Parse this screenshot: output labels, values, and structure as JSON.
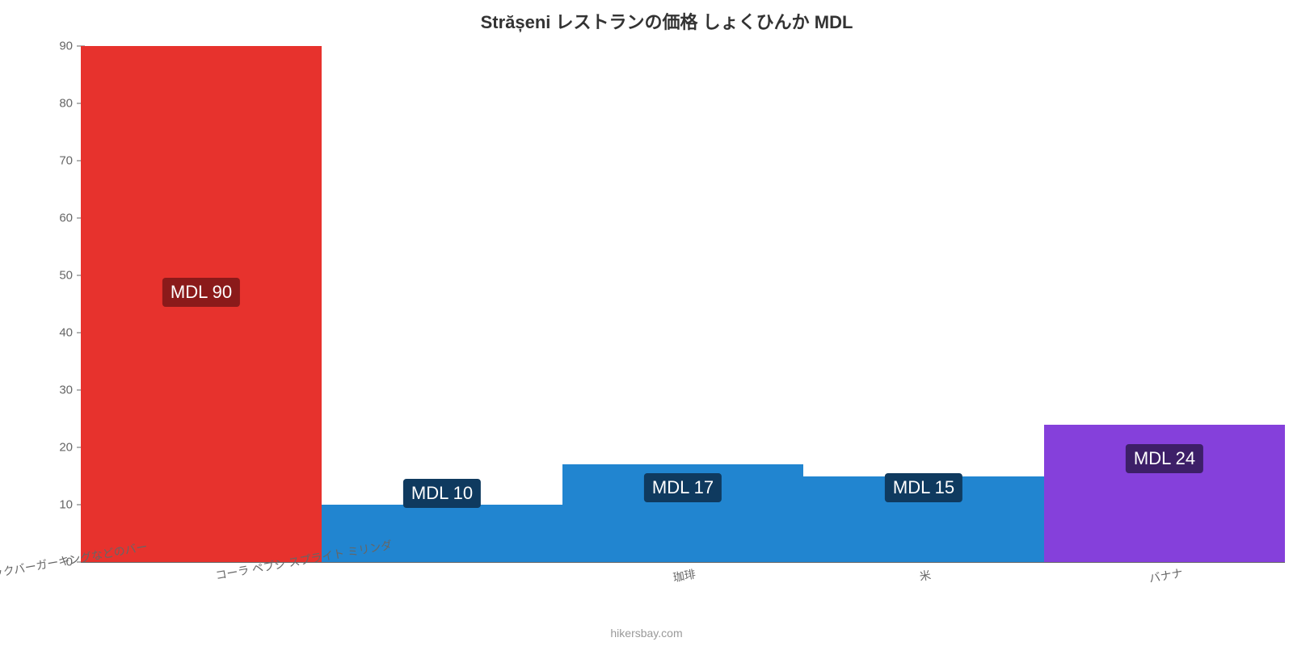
{
  "chart": {
    "type": "bar",
    "title": "Strășeni レストランの価格 しょくひんか MDL",
    "title_fontsize": 22,
    "title_color": "#333333",
    "background_color": "#ffffff",
    "attribution": "hikersbay.com",
    "attribution_fontsize": 14,
    "attribution_color": "#999999",
    "ylim": [
      0,
      90
    ],
    "ytick_step": 10,
    "yticks": [
      0,
      10,
      20,
      30,
      40,
      50,
      60,
      70,
      80,
      90
    ],
    "ytick_fontsize": 15,
    "ytick_color": "#666666",
    "axis_color": "#666666",
    "xlabel_fontsize": 14,
    "xlabel_color": "#666666",
    "xlabel_rotation_deg": -10,
    "bar_width": 1.0,
    "categories": [
      "マックバーガーキングなどのバー",
      "コーラ ペプシ スプライト ミリンダ",
      "珈琲",
      "米",
      "バナナ"
    ],
    "values": [
      90,
      10,
      17,
      15,
      24
    ],
    "bar_colors": [
      "#e7322d",
      "#2185d0",
      "#2185d0",
      "#2185d0",
      "#8540db"
    ],
    "value_labels": [
      "MDL 90",
      "MDL 10",
      "MDL 17",
      "MDL 15",
      "MDL 24"
    ],
    "value_label_fontsize": 22,
    "value_label_text_color": "#ffffff",
    "value_label_bg_colors": [
      "#8b1a1a",
      "#0f3a5f",
      "#0f3a5f",
      "#0f3a5f",
      "#3d1f68"
    ],
    "value_label_anchor_y": [
      47,
      12,
      13,
      13,
      18
    ]
  }
}
